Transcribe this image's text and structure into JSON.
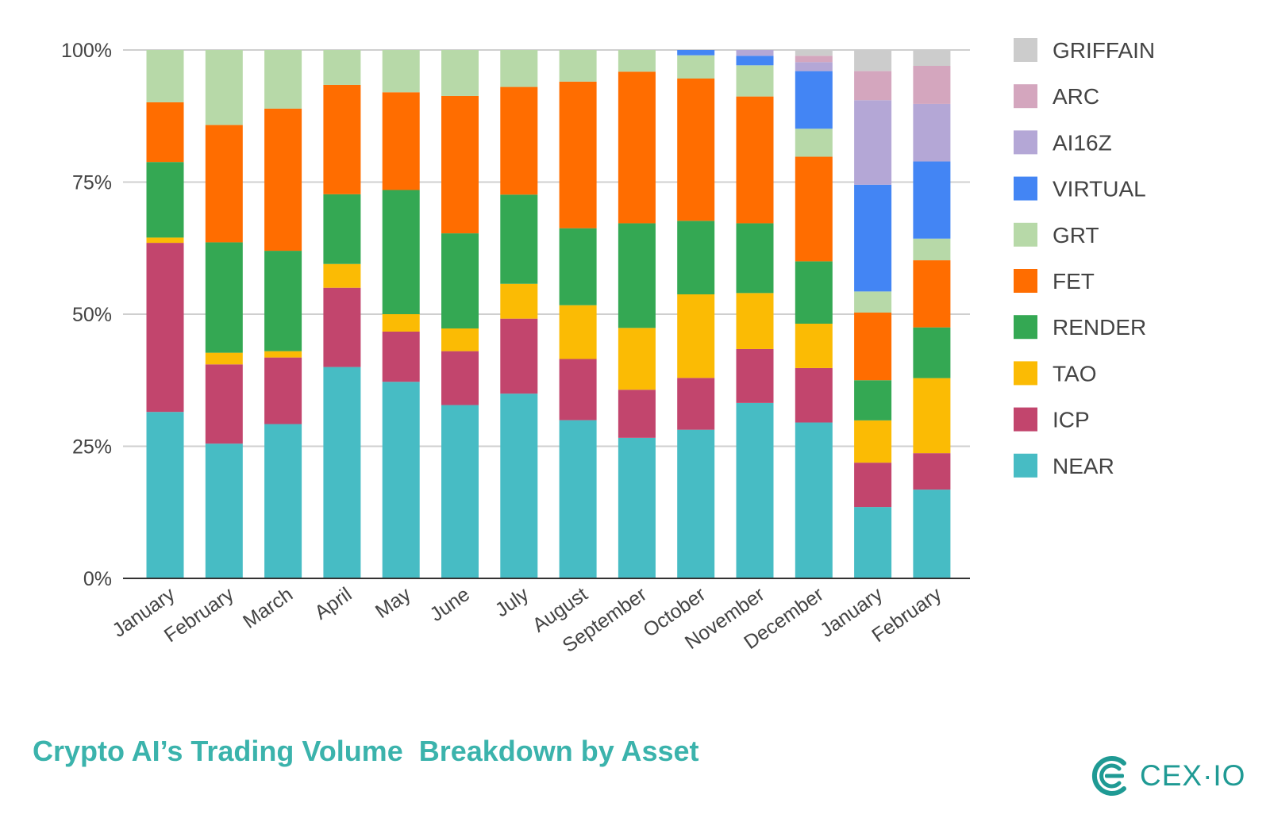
{
  "chart_data": {
    "type": "bar",
    "stacked": true,
    "normalized": true,
    "title": "Crypto AI’s Trading Volume  Breakdown by Asset",
    "brand": "CEX·IO",
    "ylim": [
      0,
      100
    ],
    "yticks": [
      "0%",
      "25%",
      "50%",
      "75%",
      "100%"
    ],
    "grid": true,
    "legend_position": "right",
    "categories": [
      "January",
      "February",
      "March",
      "April",
      "May",
      "June",
      "July",
      "August",
      "September",
      "October",
      "November",
      "December",
      "January",
      "February"
    ],
    "series": [
      {
        "name": "NEAR",
        "color": "#47bcc4",
        "values": [
          31.5,
          25.5,
          29.2,
          40.0,
          37.2,
          32.8,
          35.0,
          30.0,
          26.6,
          28.1,
          33.2,
          29.5,
          13.5,
          16.8
        ]
      },
      {
        "name": "ICP",
        "color": "#c2456d",
        "values": [
          32.0,
          15.0,
          12.6,
          15.0,
          9.5,
          10.2,
          14.2,
          11.6,
          9.1,
          9.8,
          10.2,
          10.3,
          8.4,
          6.9
        ]
      },
      {
        "name": "TAO",
        "color": "#fbbb04",
        "values": [
          1.0,
          2.2,
          1.2,
          4.5,
          3.3,
          4.3,
          6.6,
          10.2,
          11.7,
          15.8,
          10.6,
          8.4,
          8.0,
          14.2
        ]
      },
      {
        "name": "RENDER",
        "color": "#34a853",
        "values": [
          14.3,
          20.9,
          19.0,
          13.2,
          23.5,
          18.0,
          16.9,
          14.6,
          19.8,
          13.9,
          13.2,
          11.8,
          7.6,
          9.6
        ]
      },
      {
        "name": "FET",
        "color": "#ff6d00",
        "values": [
          11.3,
          22.2,
          26.9,
          20.7,
          18.5,
          26.0,
          20.4,
          27.8,
          28.7,
          26.9,
          24.0,
          19.8,
          12.8,
          12.7
        ]
      },
      {
        "name": "GRT",
        "color": "#b7d9a8",
        "values": [
          9.9,
          14.2,
          11.1,
          6.6,
          8.0,
          8.7,
          7.0,
          6.0,
          4.1,
          4.4,
          5.9,
          5.3,
          4.0,
          4.1
        ]
      },
      {
        "name": "VIRTUAL",
        "color": "#4385f4",
        "values": [
          0,
          0,
          0,
          0,
          0,
          0,
          0,
          0,
          0,
          1.0,
          1.8,
          10.9,
          20.2,
          14.6
        ]
      },
      {
        "name": "AI16Z",
        "color": "#b4a7d6",
        "values": [
          0,
          0,
          0,
          0,
          0,
          0,
          0,
          0,
          0,
          0,
          1.1,
          1.7,
          16.0,
          10.9
        ]
      },
      {
        "name": "ARC",
        "color": "#d4a6be",
        "values": [
          0,
          0,
          0,
          0,
          0,
          0,
          0,
          0,
          0,
          0,
          0,
          1.2,
          5.5,
          7.2
        ]
      },
      {
        "name": "GRIFFAIN",
        "color": "#cccccc",
        "values": [
          0,
          0,
          0,
          0,
          0,
          0,
          0,
          0,
          0,
          0,
          0,
          1.1,
          4.0,
          3.0
        ]
      }
    ]
  }
}
